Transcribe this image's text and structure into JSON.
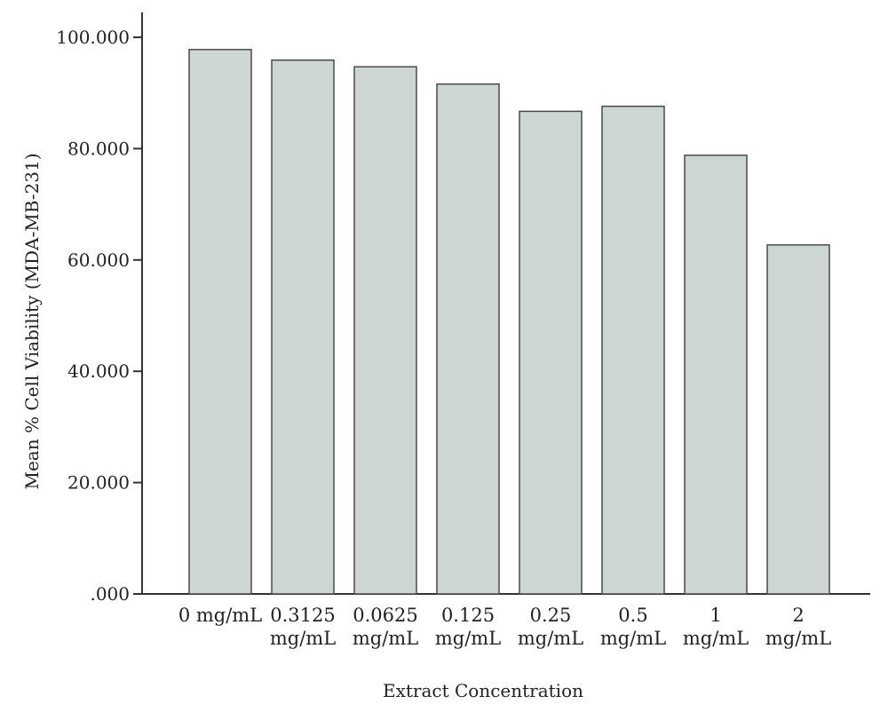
{
  "chart_data": {
    "type": "bar",
    "categories": [
      [
        "0 mg/mL"
      ],
      [
        "0.3125",
        "mg/mL"
      ],
      [
        "0.0625",
        "mg/mL"
      ],
      [
        "0.125",
        "mg/mL"
      ],
      [
        "0.25",
        "mg/mL"
      ],
      [
        "0.5",
        "mg/mL"
      ],
      [
        "1",
        "mg/mL"
      ],
      [
        "2",
        "mg/mL"
      ]
    ],
    "values": [
      97.8,
      95.9,
      94.7,
      91.6,
      86.7,
      87.6,
      78.8,
      62.7
    ],
    "xlabel": "Extract Concentration",
    "ylabel": "Mean % Cell Viability (MDA-MB-231)",
    "ylim": [
      0,
      100
    ],
    "yticks": [
      0,
      20,
      40,
      60,
      80,
      100
    ],
    "ytick_labels": [
      ".000",
      "20.000",
      "40.000",
      "60.000",
      "80.000",
      "100.000"
    ],
    "grid": false,
    "legend": "none",
    "colors": {
      "bar_fill": "#cdd6d3",
      "bar_stroke": "#4a4a4a",
      "axis": "#333333"
    }
  }
}
